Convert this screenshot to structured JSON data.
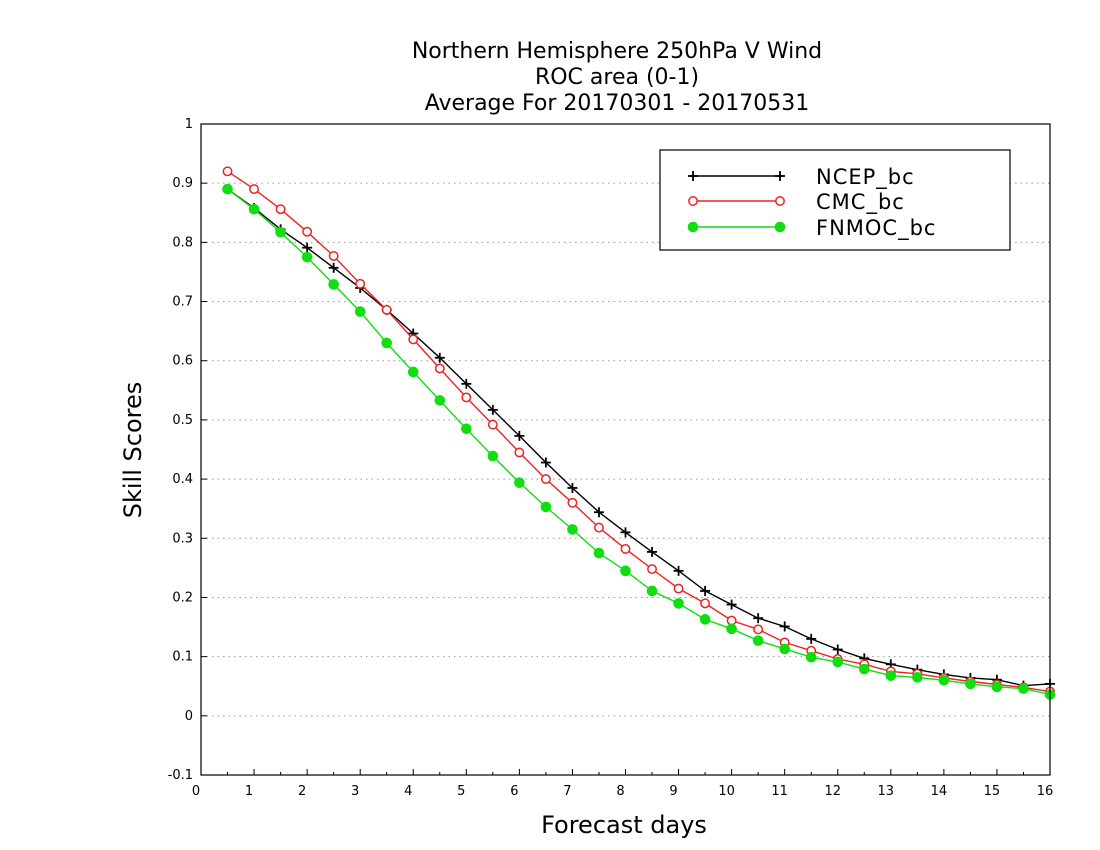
{
  "chart_data": {
    "type": "line",
    "title_lines": [
      "Northern Hemisphere 250hPa V Wind",
      "ROC area (0-1)",
      "Average For 20170301 - 20170531"
    ],
    "xlabel": "Forecast days",
    "ylabel": "Skill Scores",
    "xlim": [
      0,
      16
    ],
    "ylim": [
      -0.1,
      1
    ],
    "x_ticks": [
      "0",
      "1",
      "2",
      "3",
      "4",
      "5",
      "6",
      "7",
      "8",
      "9",
      "10",
      "11",
      "12",
      "13",
      "14",
      "15",
      "16"
    ],
    "y_ticks": [
      "-0.1",
      "0",
      "0.1",
      "0.2",
      "0.3",
      "0.4",
      "0.5",
      "0.6",
      "0.7",
      "0.8",
      "0.9",
      "1"
    ],
    "grid": "horizontal dotted",
    "legend_position": "top-right",
    "x": [
      0.5,
      1,
      1.5,
      2,
      2.5,
      3,
      3.5,
      4,
      4.5,
      5,
      5.5,
      6,
      6.5,
      7,
      7.5,
      8,
      8.5,
      9,
      9.5,
      10,
      10.5,
      11,
      11.5,
      12,
      12.5,
      13,
      13.5,
      14,
      14.5,
      15,
      15.5,
      16
    ],
    "series": [
      {
        "name": "NCEP_bc",
        "color": "#000000",
        "marker": "plus",
        "values": [
          0.89,
          0.858,
          0.822,
          0.791,
          0.757,
          0.723,
          0.686,
          0.646,
          0.605,
          0.561,
          0.517,
          0.473,
          0.428,
          0.385,
          0.344,
          0.31,
          0.277,
          0.245,
          0.211,
          0.188,
          0.165,
          0.151,
          0.13,
          0.112,
          0.097,
          0.087,
          0.078,
          0.07,
          0.064,
          0.061,
          0.051,
          0.054
        ]
      },
      {
        "name": "CMC_bc",
        "color": "#ee2222",
        "marker": "open-circle",
        "values": [
          0.92,
          0.89,
          0.856,
          0.818,
          0.777,
          0.73,
          0.686,
          0.636,
          0.587,
          0.538,
          0.492,
          0.445,
          0.4,
          0.36,
          0.318,
          0.282,
          0.248,
          0.215,
          0.19,
          0.161,
          0.146,
          0.124,
          0.11,
          0.096,
          0.087,
          0.075,
          0.071,
          0.064,
          0.058,
          0.053,
          0.048,
          0.041
        ]
      },
      {
        "name": "FNMOC_bc",
        "color": "#11dd11",
        "marker": "filled-circle",
        "values": [
          0.89,
          0.856,
          0.817,
          0.775,
          0.729,
          0.683,
          0.63,
          0.581,
          0.533,
          0.485,
          0.439,
          0.394,
          0.353,
          0.315,
          0.275,
          0.245,
          0.211,
          0.19,
          0.163,
          0.147,
          0.127,
          0.113,
          0.099,
          0.091,
          0.079,
          0.068,
          0.065,
          0.06,
          0.054,
          0.049,
          0.046,
          0.036
        ]
      }
    ]
  }
}
